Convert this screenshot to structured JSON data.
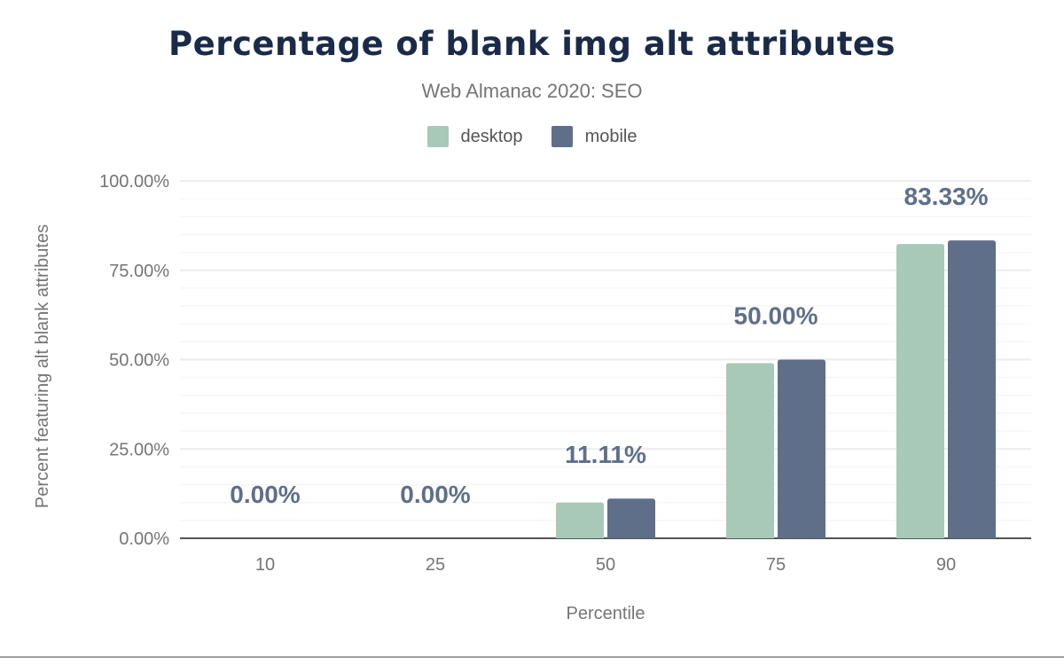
{
  "chart_data": {
    "type": "bar",
    "title": "Percentage of blank img alt attributes",
    "subtitle": "Web Almanac 2020: SEO",
    "xlabel": "Percentile",
    "ylabel": "Percent featuring alt blank attributes",
    "categories": [
      "10",
      "25",
      "50",
      "75",
      "90"
    ],
    "series": [
      {
        "name": "desktop",
        "color": "#a8c9b8",
        "values": [
          0,
          0,
          10.0,
          49.0,
          82.35
        ]
      },
      {
        "name": "mobile",
        "color": "#5f6f89",
        "values": [
          0,
          0,
          11.11,
          50.0,
          83.33
        ]
      }
    ],
    "data_labels": [
      "0.00%",
      "0.00%",
      "11.11%",
      "50.00%",
      "83.33%"
    ],
    "ylim": [
      0,
      100
    ],
    "yticks": [
      "0.00%",
      "25.00%",
      "50.00%",
      "75.00%",
      "100.00%"
    ],
    "grid": true,
    "legend_position": "top-center"
  }
}
